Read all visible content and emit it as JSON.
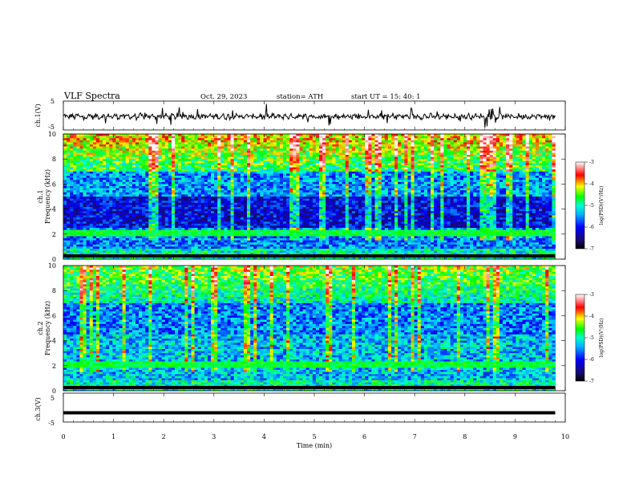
{
  "header": {
    "title": "VLF  Spectra",
    "date": "Oct. 29, 2023",
    "station": "station= ATH",
    "start": "start  UT  =    15: 40: 1"
  },
  "chart_data": [
    {
      "type": "line",
      "name": "ch1-waveform",
      "ylabel": "ch.1(V)",
      "ylim": [
        -5,
        5
      ],
      "yticks": [
        "5",
        "-5"
      ]
    },
    {
      "type": "heatmap",
      "name": "ch1-spectrogram",
      "ylabel": "ch.1\nFrequency  (kHz)",
      "ylim": [
        0,
        10
      ],
      "yticks": [
        "0",
        "2",
        "4",
        "6",
        "8",
        "10"
      ],
      "colorbar": {
        "label": "log(PSD)(V²/Hz)",
        "ticks": [
          "-3",
          "-4",
          "-5",
          "-6",
          "-7"
        ],
        "range": [
          -7,
          -3
        ]
      }
    },
    {
      "type": "heatmap",
      "name": "ch2-spectrogram",
      "ylabel": "ch.2\nFrequency  (kHz)",
      "ylim": [
        0,
        10
      ],
      "yticks": [
        "0",
        "2",
        "4",
        "6",
        "8",
        "10"
      ],
      "colorbar": {
        "label": "log(PSD)(V²/Hz)",
        "ticks": [
          "-3",
          "-4",
          "-5",
          "-6",
          "-7"
        ],
        "range": [
          -7,
          -3
        ]
      }
    },
    {
      "type": "line",
      "name": "ch3-waveform",
      "ylabel": "ch.3(V)",
      "ylim": [
        -5,
        5
      ],
      "yticks": [
        "5",
        "-5"
      ],
      "level": -1.8
    }
  ],
  "xaxis": {
    "label": "Time  (min)",
    "xlim": [
      0,
      10
    ],
    "ticks": [
      "0",
      "1",
      "2",
      "3",
      "4",
      "5",
      "6",
      "7",
      "8",
      "9",
      "10"
    ]
  },
  "colors": {
    "axis": "#000000",
    "background": "#ffffff"
  }
}
